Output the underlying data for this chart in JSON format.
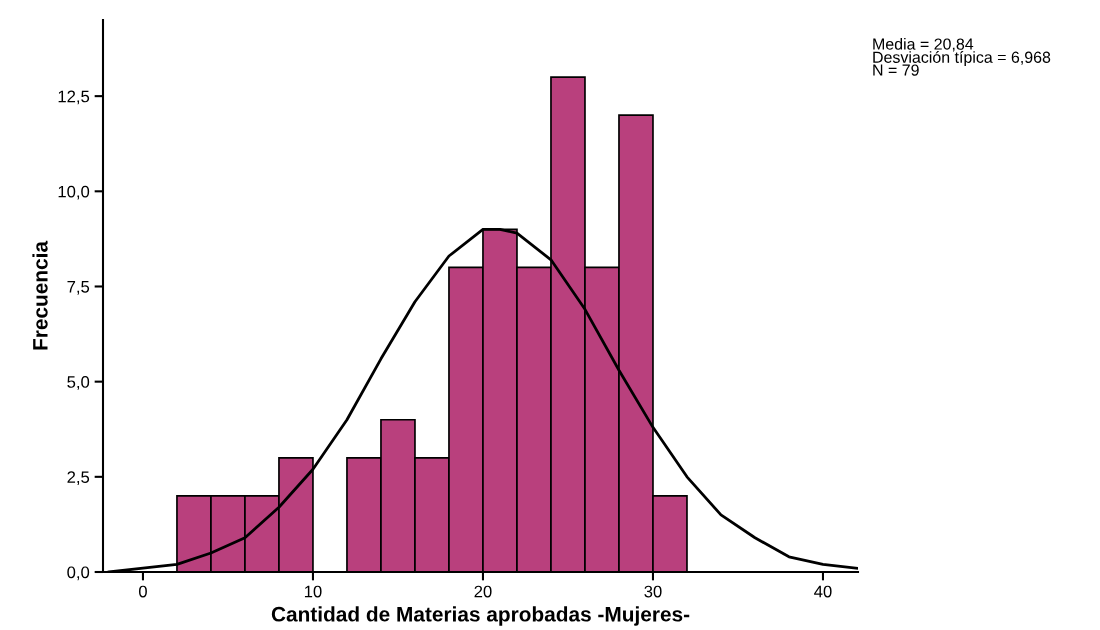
{
  "chart_data": {
    "type": "histogram",
    "xlabel": "Cantidad de Materias aprobadas -Mujeres-",
    "ylabel": "Frecuencia",
    "bins": [
      2,
      4,
      6,
      8,
      10,
      12,
      14,
      16,
      18,
      20,
      22,
      24,
      26,
      28,
      30,
      32
    ],
    "series": [
      {
        "type": "histogram",
        "color": "#b9407d",
        "values": [
          2,
          2,
          2,
          3,
          0,
          3,
          4,
          3,
          8,
          9,
          8,
          13,
          8,
          12,
          2
        ]
      },
      {
        "type": "line",
        "color": "#000000",
        "x": [
          -2,
          0,
          2,
          4,
          6,
          8,
          10,
          12,
          14,
          16,
          18,
          20,
          21,
          22,
          24,
          26,
          28,
          30,
          32,
          34,
          36,
          38,
          40,
          42
        ],
        "values": [
          0.0,
          0.1,
          0.2,
          0.5,
          0.9,
          1.7,
          2.7,
          4.0,
          5.6,
          7.1,
          8.3,
          9.0,
          9.0,
          8.9,
          8.2,
          6.9,
          5.3,
          3.8,
          2.5,
          1.5,
          0.9,
          0.4,
          0.2,
          0.1
        ]
      }
    ],
    "xlim": [
      -2.35,
      42.06
    ],
    "ylim": [
      0,
      14.5
    ],
    "xticks": [
      0,
      10,
      20,
      30,
      40
    ],
    "yticks": [
      {
        "value": 0,
        "label": "0,0"
      },
      {
        "value": 2.5,
        "label": "2,5"
      },
      {
        "value": 5,
        "label": "5,0"
      },
      {
        "value": 7.5,
        "label": "7,5"
      },
      {
        "value": 10,
        "label": "10,0"
      },
      {
        "value": 12.5,
        "label": "12,5"
      }
    ],
    "annotations": [
      "Media = 20,84",
      "Desviación típica = 6,968",
      "N = 79"
    ],
    "grid": false,
    "legend": false,
    "marker": "none",
    "line_style": "solid"
  }
}
